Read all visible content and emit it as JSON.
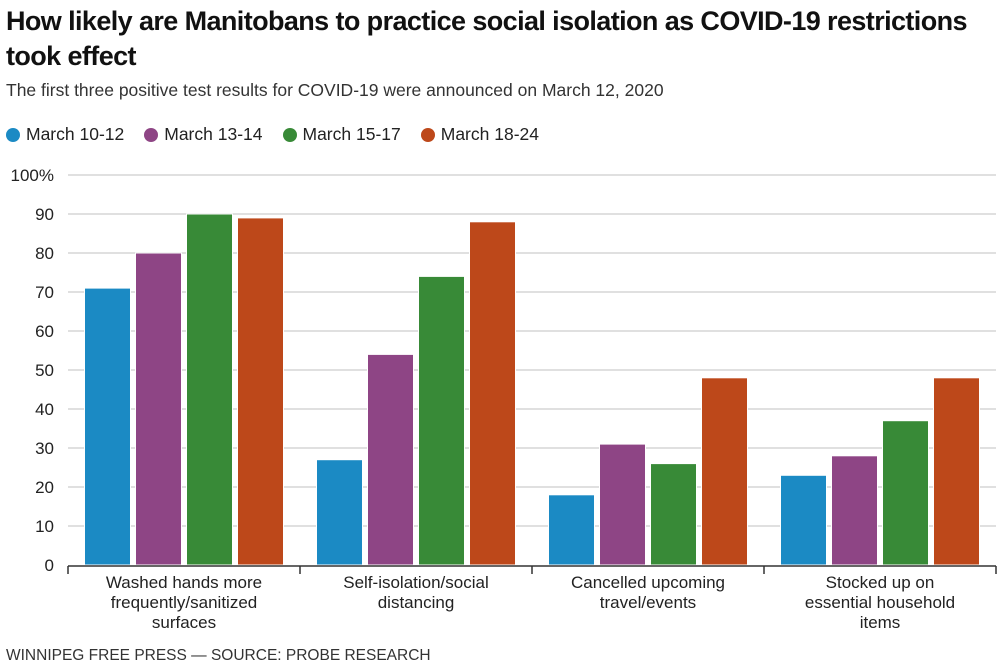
{
  "chart_data": {
    "type": "bar",
    "title": "How likely are Manitobans to practice social isolation as COVID-19 restrictions took effect",
    "subtitle": "The first three positive test results for COVID-19 were announced on March 12, 2020",
    "xlabel": "",
    "ylabel": "",
    "ylim": [
      0,
      100
    ],
    "yticks": [
      0,
      10,
      20,
      30,
      40,
      50,
      60,
      70,
      80,
      90,
      100
    ],
    "ytick_labels": [
      "0",
      "10",
      "20",
      "30",
      "40",
      "50",
      "60",
      "70",
      "80",
      "90",
      "100%"
    ],
    "grid": true,
    "legend_position": "top-left",
    "categories": [
      [
        "Washed hands more",
        "frequently/sanitized",
        "surfaces"
      ],
      [
        "Self-isolation/social",
        "distancing"
      ],
      [
        "Cancelled upcoming",
        "travel/events"
      ],
      [
        "Stocked up on",
        "essential household",
        "items"
      ]
    ],
    "series": [
      {
        "name": "March 10-12",
        "color": "#1b8ac4",
        "values": [
          71,
          27,
          18,
          23
        ]
      },
      {
        "name": "March 13-14",
        "color": "#8e4585",
        "values": [
          80,
          54,
          31,
          28
        ]
      },
      {
        "name": "March 15-17",
        "color": "#388a37",
        "values": [
          90,
          74,
          26,
          37
        ]
      },
      {
        "name": "March 18-24",
        "color": "#bd481a",
        "values": [
          89,
          88,
          48,
          48
        ]
      }
    ],
    "source": "WINNIPEG FREE PRESS — SOURCE: PROBE RESEARCH"
  },
  "header": {
    "title": "How likely are Manitobans to practice social isolation as COVID-19 restrictions took effect",
    "subtitle": "The first three positive test results for COVID-19 were announced on March 12, 2020"
  },
  "legend": {
    "items": [
      {
        "label": "March 10-12",
        "color": "#1b8ac4"
      },
      {
        "label": "March 13-14",
        "color": "#8e4585"
      },
      {
        "label": "March 15-17",
        "color": "#388a37"
      },
      {
        "label": "March 18-24",
        "color": "#bd481a"
      }
    ]
  },
  "footer": {
    "source": "WINNIPEG FREE PRESS — SOURCE: PROBE RESEARCH"
  }
}
